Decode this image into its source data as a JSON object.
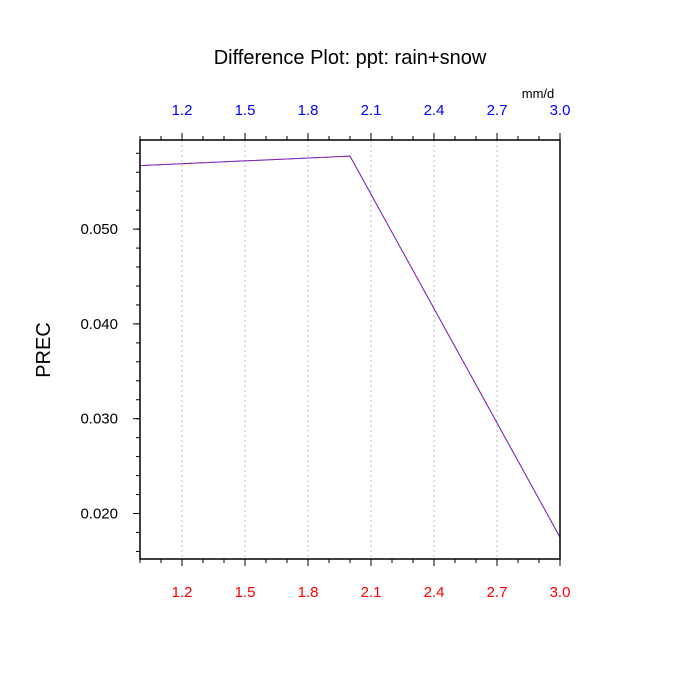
{
  "chart_data": {
    "type": "line",
    "title": "Difference Plot: ppt: rain+snow",
    "ylabel": "PREC",
    "top_axis_unit": "mm/d",
    "x": [
      1.0,
      2.0,
      3.0
    ],
    "xlim": [
      1.0,
      3.0
    ],
    "ylim": [
      0.0152,
      0.0594
    ],
    "bottom_xticks": [
      "1.2",
      "1.5",
      "1.8",
      "2.1",
      "2.4",
      "2.7",
      "3.0"
    ],
    "bottom_xtick_values": [
      1.2,
      1.5,
      1.8,
      2.1,
      2.4,
      2.7,
      3.0
    ],
    "top_xticks": [
      "1.2",
      "1.5",
      "1.8",
      "2.1",
      "2.4",
      "2.7",
      "3.0"
    ],
    "top_xtick_values": [
      1.2,
      1.5,
      1.8,
      2.1,
      2.4,
      2.7,
      3.0
    ],
    "yticks": [
      "0.050",
      "0.040",
      "0.030",
      "0.020"
    ],
    "ytick_values": [
      0.05,
      0.04,
      0.03,
      0.02
    ],
    "series": [
      {
        "values": [
          0.0567,
          0.0577,
          0.0175
        ],
        "color": "#3b2bd9"
      },
      {
        "values": [
          0.0567,
          0.0577,
          0.0175
        ],
        "color": "#c81e8c",
        "dash": true
      }
    ],
    "grid": "vertical-dotted",
    "colors": {
      "bottom_ticks": "#ff0000",
      "top_ticks": "#0000ff",
      "grid": "#bdbdbd"
    }
  }
}
